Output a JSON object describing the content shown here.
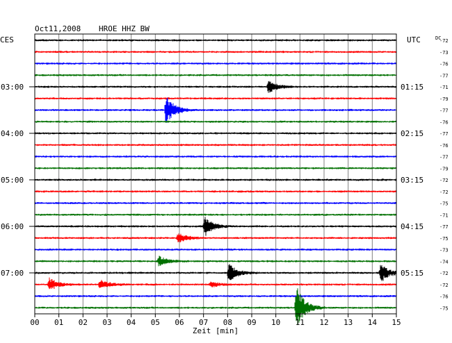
{
  "header": {
    "date": "Oct11,2008",
    "station": "HROE HHZ BW",
    "left_tz": "CES",
    "right_tz": "UTC",
    "dc_label": "DC"
  },
  "chart_data": {
    "type": "line",
    "xlabel": "Zeit [min]",
    "xlim": [
      0,
      15
    ],
    "x_ticks": [
      "00",
      "01",
      "02",
      "03",
      "04",
      "05",
      "06",
      "07",
      "08",
      "09",
      "10",
      "11",
      "12",
      "13",
      "14",
      "15"
    ],
    "trace_colors": [
      "#000000",
      "#ff0000",
      "#0000ff",
      "#007000"
    ],
    "left_time_labels": [
      {
        "trace": 4,
        "text": "03:00"
      },
      {
        "trace": 8,
        "text": "04:00"
      },
      {
        "trace": 12,
        "text": "05:00"
      },
      {
        "trace": 16,
        "text": "06:00"
      },
      {
        "trace": 20,
        "text": "07:00"
      }
    ],
    "right_time_labels": [
      {
        "trace": 4,
        "text": "01:15"
      },
      {
        "trace": 8,
        "text": "02:15"
      },
      {
        "trace": 12,
        "text": "03:15"
      },
      {
        "trace": 16,
        "text": "04:15"
      },
      {
        "trace": 20,
        "text": "05:15"
      }
    ],
    "dc_offsets": [
      -72,
      -73,
      -76,
      -77,
      -71,
      -79,
      -77,
      -76,
      -77,
      -76,
      -77,
      -79,
      -72,
      -72,
      -75,
      -71,
      -77,
      -75,
      -73,
      -74,
      -72,
      -72,
      -76,
      -75
    ],
    "events": [
      {
        "trace": 4,
        "minute": 9.7,
        "amp": 0.9
      },
      {
        "trace": 6,
        "minute": 5.45,
        "amp": 2.2
      },
      {
        "trace": 16,
        "minute": 7.05,
        "amp": 1.4
      },
      {
        "trace": 17,
        "minute": 5.95,
        "amp": 0.7
      },
      {
        "trace": 19,
        "minute": 5.15,
        "amp": 0.7
      },
      {
        "trace": 20,
        "minute": 8.05,
        "amp": 1.3
      },
      {
        "trace": 20,
        "minute": 14.35,
        "amp": 1.4
      },
      {
        "trace": 21,
        "minute": 0.6,
        "amp": 0.9
      },
      {
        "trace": 21,
        "minute": 2.7,
        "amp": 0.7
      },
      {
        "trace": 21,
        "minute": 7.3,
        "amp": 0.4
      },
      {
        "trace": 23,
        "minute": 10.85,
        "amp": 3.2
      }
    ]
  }
}
